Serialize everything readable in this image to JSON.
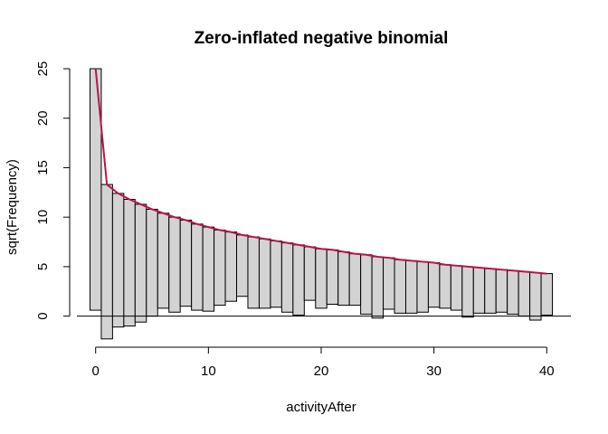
{
  "chart_data": {
    "type": "bar",
    "title": "Zero-inflated negative binomial",
    "xlabel": "activityAfter",
    "ylabel": "sqrt(Frequency)",
    "xlim": [
      -1.5,
      41.5
    ],
    "ylim": [
      -2.5,
      25
    ],
    "x_ticks": [
      0,
      10,
      20,
      30,
      40
    ],
    "y_ticks": [
      0,
      5,
      10,
      15,
      20,
      25
    ],
    "zero_line": true,
    "fit_color": "#b5174b",
    "bar_fill": "#d3d3d3",
    "x": [
      0,
      1,
      2,
      3,
      4,
      5,
      6,
      7,
      8,
      9,
      10,
      11,
      12,
      13,
      14,
      15,
      16,
      17,
      18,
      19,
      20,
      21,
      22,
      23,
      24,
      25,
      26,
      27,
      28,
      29,
      30,
      31,
      32,
      33,
      34,
      35,
      36,
      37,
      38,
      39,
      40
    ],
    "expected": [
      25.0,
      13.3,
      12.4,
      11.8,
      11.3,
      10.8,
      10.4,
      10.0,
      9.7,
      9.3,
      9.0,
      8.7,
      8.5,
      8.2,
      8.0,
      7.8,
      7.6,
      7.4,
      7.2,
      7.0,
      6.8,
      6.7,
      6.5,
      6.3,
      6.2,
      6.0,
      5.9,
      5.7,
      5.6,
      5.5,
      5.4,
      5.2,
      5.1,
      5.0,
      4.9,
      4.8,
      4.7,
      4.6,
      4.5,
      4.4,
      4.3
    ],
    "bar_bottom": [
      0.6,
      -2.3,
      -1.1,
      -1.0,
      -0.6,
      0.0,
      0.8,
      0.4,
      1.0,
      0.6,
      0.5,
      1.1,
      1.5,
      2.0,
      0.8,
      0.8,
      0.9,
      0.4,
      0.1,
      1.6,
      0.8,
      1.2,
      1.1,
      1.1,
      0.2,
      -0.2,
      0.7,
      0.3,
      0.3,
      0.4,
      0.9,
      0.8,
      0.6,
      -0.1,
      0.3,
      0.3,
      0.4,
      0.2,
      0.0,
      -0.4,
      0.1
    ]
  }
}
